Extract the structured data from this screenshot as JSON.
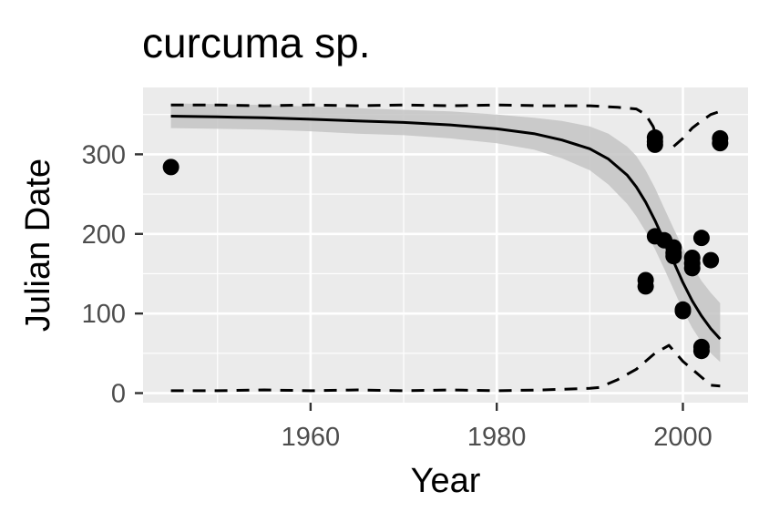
{
  "chart_data": {
    "type": "scatter",
    "title": "curcuma sp.",
    "xlabel": "Year",
    "ylabel": "Julian Date",
    "xlim": [
      1942,
      2007
    ],
    "ylim": [
      -12,
      384
    ],
    "x_ticks": [
      1960,
      1980,
      2000
    ],
    "y_ticks": [
      0,
      100,
      200,
      300
    ],
    "grid": true,
    "legend": "none",
    "colors": {
      "panel": "#ebebeb",
      "grid": "#ffffff",
      "points": "#000000",
      "ribbon": "#c4c4c4",
      "text": "#4d4d4d"
    },
    "points": [
      {
        "x": 1945,
        "y": 284
      },
      {
        "x": 1996,
        "y": 142
      },
      {
        "x": 1996,
        "y": 134
      },
      {
        "x": 1997,
        "y": 321
      },
      {
        "x": 1997,
        "y": 316
      },
      {
        "x": 1997,
        "y": 312
      },
      {
        "x": 1997,
        "y": 197
      },
      {
        "x": 1998,
        "y": 192
      },
      {
        "x": 1999,
        "y": 183
      },
      {
        "x": 1999,
        "y": 176
      },
      {
        "x": 1999,
        "y": 172
      },
      {
        "x": 2000,
        "y": 105
      },
      {
        "x": 2000,
        "y": 103
      },
      {
        "x": 2001,
        "y": 170
      },
      {
        "x": 2001,
        "y": 163
      },
      {
        "x": 2001,
        "y": 157
      },
      {
        "x": 2002,
        "y": 195
      },
      {
        "x": 2002,
        "y": 58
      },
      {
        "x": 2002,
        "y": 53
      },
      {
        "x": 2003,
        "y": 167
      },
      {
        "x": 2004,
        "y": 320
      },
      {
        "x": 2004,
        "y": 314
      }
    ],
    "series": [
      {
        "kind": "fit",
        "style": "solid",
        "x": [
          1945,
          1950,
          1955,
          1960,
          1965,
          1970,
          1975,
          1980,
          1984,
          1987,
          1990,
          1992,
          1994,
          1995,
          1996,
          1997,
          1998,
          1999,
          2000,
          2001,
          2002,
          2003,
          2004
        ],
        "values": [
          348,
          347,
          346,
          344,
          342,
          340,
          337,
          332,
          326,
          318,
          307,
          294,
          274,
          259,
          240,
          217,
          191,
          165,
          139,
          116,
          97,
          81,
          68
        ]
      },
      {
        "kind": "confidence-upper",
        "style": "ribbon",
        "x": [
          1945,
          1950,
          1955,
          1960,
          1965,
          1970,
          1975,
          1980,
          1984,
          1987,
          1990,
          1992,
          1994,
          1995,
          1996,
          1997,
          1998,
          1999,
          2000,
          2001,
          2002,
          2003,
          2004
        ],
        "values": [
          364,
          363,
          362,
          360,
          358,
          356,
          354,
          350,
          346,
          342,
          335,
          326,
          310,
          298,
          280,
          258,
          232,
          207,
          182,
          160,
          141,
          126,
          113
        ]
      },
      {
        "kind": "confidence-lower",
        "style": "ribbon",
        "x": [
          1945,
          1950,
          1955,
          1960,
          1965,
          1970,
          1975,
          1980,
          1984,
          1987,
          1990,
          1992,
          1994,
          1995,
          1996,
          1997,
          1998,
          1999,
          2000,
          2001,
          2002,
          2003,
          2004
        ],
        "values": [
          333,
          332,
          331,
          329,
          326,
          324,
          320,
          314,
          306,
          295,
          280,
          262,
          238,
          222,
          203,
          181,
          156,
          130,
          104,
          82,
          64,
          50,
          39
        ]
      },
      {
        "kind": "prediction-upper",
        "style": "dashed",
        "x": [
          1945,
          1950,
          1955,
          1960,
          1965,
          1970,
          1975,
          1980,
          1985,
          1990,
          1993,
          1995,
          1996,
          1996.8,
          1997.3,
          1997.6,
          1999,
          2000,
          2001,
          2002,
          2003,
          2004
        ],
        "values": [
          362,
          362,
          361,
          362,
          361,
          362,
          361,
          362,
          361,
          361,
          359,
          357,
          350,
          335,
          318,
          null,
          310,
          320,
          333,
          342,
          350,
          354
        ]
      },
      {
        "kind": "prediction-lower",
        "style": "dashed",
        "x": [
          1945,
          1950,
          1955,
          1960,
          1965,
          1970,
          1975,
          1980,
          1985,
          1990,
          1991,
          1993,
          1995,
          1997,
          1998.5,
          2000,
          2002,
          2003,
          2004
        ],
        "values": [
          3,
          3,
          4,
          3,
          4,
          3,
          4,
          3,
          4,
          6,
          7,
          17,
          30,
          50,
          60,
          40,
          20,
          10,
          9
        ]
      }
    ]
  }
}
